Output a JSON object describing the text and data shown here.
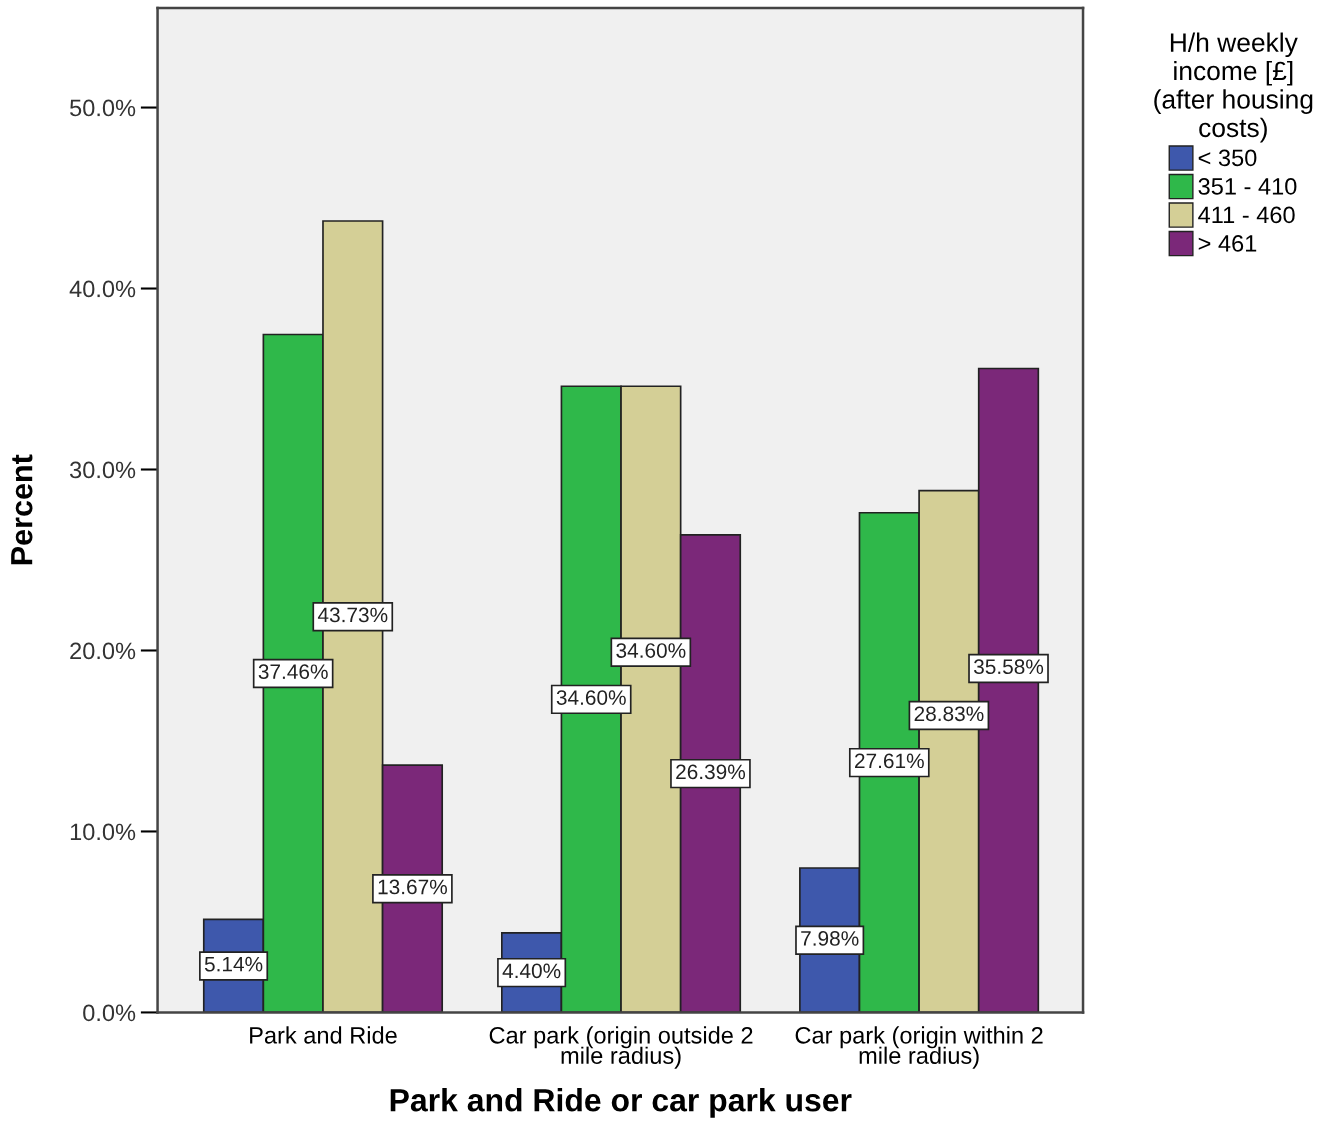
{
  "chart_data": {
    "type": "bar",
    "xlabel": "Park and Ride or car park user",
    "ylabel": "Percent",
    "legend_title": "H/h weekly\nincome [£]\n(after housing\ncosts)",
    "categories": [
      "Park and Ride",
      "Car park (origin outside 2\nmile radius)",
      "Car park (origin within 2\nmile radius)"
    ],
    "series": [
      {
        "name": "< 350",
        "color": "#3e58ac",
        "values": [
          5.14,
          4.4,
          7.98
        ],
        "value_labels": [
          "5.14%",
          "4.40%",
          "7.98%"
        ]
      },
      {
        "name": "351 - 410",
        "color": "#2fb84a",
        "values": [
          37.46,
          34.6,
          27.61
        ],
        "value_labels": [
          "37.46%",
          "34.60%",
          "27.61%"
        ]
      },
      {
        "name": "411 - 460",
        "color": "#d4cf96",
        "values": [
          43.73,
          34.6,
          28.83
        ],
        "value_labels": [
          "43.73%",
          "34.60%",
          "28.83%"
        ]
      },
      {
        "name": "> 461",
        "color": "#7b2879",
        "values": [
          13.67,
          26.39,
          35.58
        ],
        "value_labels": [
          "13.67%",
          "26.39%",
          "35.58%"
        ]
      }
    ],
    "ylim": [
      0,
      55.5
    ],
    "yticks": [
      {
        "value": 0,
        "label": "0.0%"
      },
      {
        "value": 10,
        "label": "10.0%"
      },
      {
        "value": 20,
        "label": "20.0%"
      },
      {
        "value": 30,
        "label": "30.0%"
      },
      {
        "value": 40,
        "label": "40.0%"
      },
      {
        "value": 50,
        "label": "50.0%"
      }
    ],
    "grid": false,
    "legend": "top right"
  }
}
